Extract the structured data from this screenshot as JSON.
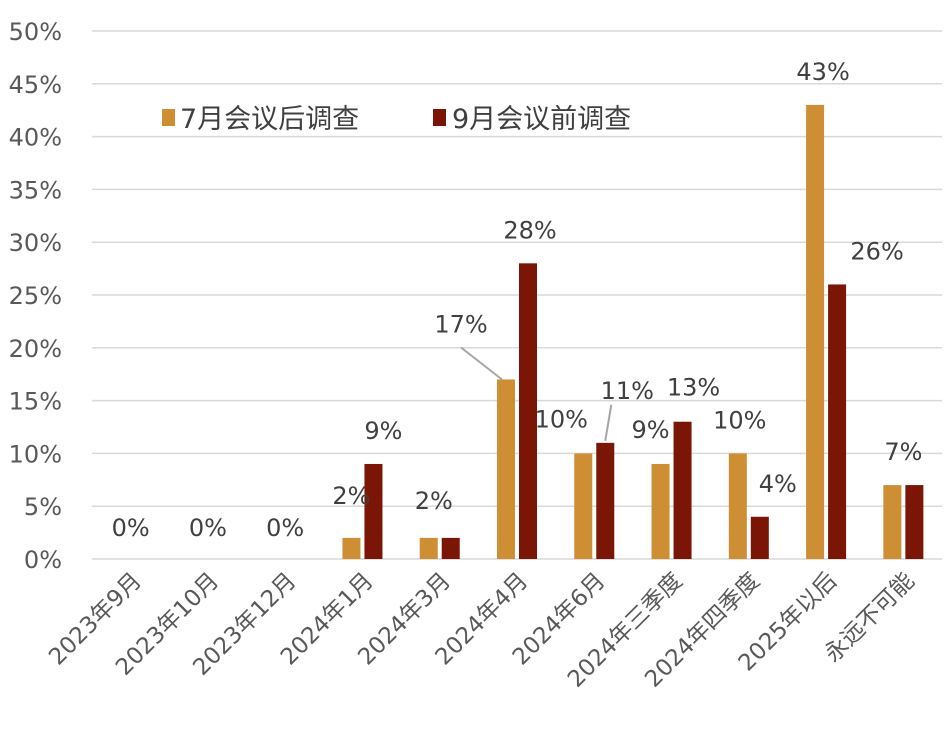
{
  "chart_data": {
    "type": "bar",
    "title": "",
    "xlabel": "",
    "ylabel": "",
    "ylim": [
      0,
      50
    ],
    "y_ticks": [
      "0%",
      "5%",
      "10%",
      "15%",
      "20%",
      "25%",
      "30%",
      "35%",
      "40%",
      "45%",
      "50%"
    ],
    "grid": true,
    "legend_position": "top-left",
    "categories": [
      "2023年9月",
      "2023年10月",
      "2023年12月",
      "2024年1月",
      "2024年3月",
      "2024年4月",
      "2024年6月",
      "2024年三季度",
      "2024年四季度",
      "2025年以后",
      "永远不可能"
    ],
    "series": [
      {
        "name": "7月会议后调查",
        "color": "#CD8E34",
        "values": [
          0,
          0,
          0,
          2,
          2,
          17,
          10,
          9,
          10,
          43,
          7
        ]
      },
      {
        "name": "9月会议前调查",
        "color": "#7B1606",
        "values": [
          0,
          0,
          0,
          9,
          2,
          28,
          11,
          13,
          4,
          26,
          7
        ]
      }
    ],
    "data_labels": [
      {
        "category_index": 0,
        "text": "0%"
      },
      {
        "category_index": 1,
        "text": "0%"
      },
      {
        "category_index": 2,
        "text": "0%"
      },
      {
        "category_index": 3,
        "series": 0,
        "text": "2%"
      },
      {
        "category_index": 3,
        "series": 1,
        "text": "9%"
      },
      {
        "category_index": 4,
        "series": 0,
        "text": "2%"
      },
      {
        "category_index": 5,
        "series": 0,
        "text": "17%"
      },
      {
        "category_index": 5,
        "series": 1,
        "text": "28%"
      },
      {
        "category_index": 6,
        "series": 0,
        "text": "10%"
      },
      {
        "category_index": 6,
        "series": 1,
        "text": "11%"
      },
      {
        "category_index": 7,
        "series": 0,
        "text": "9%"
      },
      {
        "category_index": 7,
        "series": 1,
        "text": "13%"
      },
      {
        "category_index": 8,
        "series": 0,
        "text": "10%"
      },
      {
        "category_index": 8,
        "series": 1,
        "text": "4%"
      },
      {
        "category_index": 9,
        "series": 0,
        "text": "43%"
      },
      {
        "category_index": 9,
        "series": 1,
        "text": "26%"
      },
      {
        "category_index": 10,
        "text": "7%"
      }
    ]
  }
}
